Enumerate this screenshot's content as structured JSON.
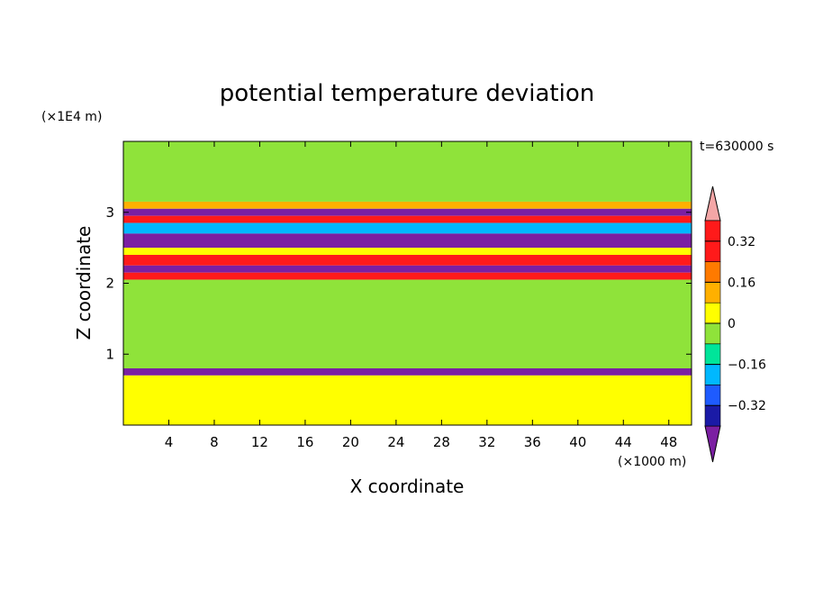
{
  "chart_data": {
    "type": "heatmap",
    "title": "potential temperature deviation",
    "time_label": "t=630000 s",
    "xlabel": "X coordinate",
    "ylabel": "Z coordinate",
    "x_unit": "(×1000 m)",
    "y_unit": "(×1E4 m)",
    "xlim": [
      0,
      50
    ],
    "ylim": [
      0,
      4
    ],
    "x_ticks": [
      4,
      8,
      12,
      16,
      20,
      24,
      28,
      32,
      36,
      40,
      44,
      48
    ],
    "y_ticks": [
      1,
      2,
      3
    ],
    "colorbar": {
      "levels": [
        -0.4,
        -0.32,
        -0.24,
        -0.16,
        -0.08,
        0,
        0.08,
        0.16,
        0.24,
        0.32,
        0.4
      ],
      "tick_values": [
        0.32,
        0.16,
        0,
        -0.16,
        -0.32
      ],
      "tick_labels": [
        "0.32",
        "0.16",
        "0",
        "−0.16",
        "−0.32"
      ],
      "colors": [
        "#7b1fa2",
        "#1a1aa6",
        "#1e5bff",
        "#00b8ff",
        "#00e59a",
        "#8fe33a",
        "#ffff00",
        "#ffb000",
        "#ff7a00",
        "#ff1a1a",
        "#f4a6a6"
      ]
    },
    "bands": [
      {
        "z0": 3.15,
        "z1": 4.0,
        "value": 0.05
      },
      {
        "z0": 3.05,
        "z1": 3.15,
        "value": 0.2
      },
      {
        "z0": 2.95,
        "z1": 3.05,
        "value": -0.36
      },
      {
        "z0": 2.85,
        "z1": 2.95,
        "value": 0.38
      },
      {
        "z0": 2.7,
        "z1": 2.85,
        "value": -0.1
      },
      {
        "z0": 2.5,
        "z1": 2.7,
        "value": -0.36
      },
      {
        "z0": 2.4,
        "z1": 2.5,
        "value": 0.1
      },
      {
        "z0": 2.25,
        "z1": 2.4,
        "value": 0.38
      },
      {
        "z0": 2.15,
        "z1": 2.25,
        "value": -0.36
      },
      {
        "z0": 2.05,
        "z1": 2.15,
        "value": 0.38
      },
      {
        "z0": 0.8,
        "z1": 2.05,
        "value": 0.03
      },
      {
        "z0": 0.7,
        "z1": 0.8,
        "value": -0.38
      },
      {
        "z0": 0.0,
        "z1": 0.7,
        "value": 0.1
      }
    ],
    "grid": false
  }
}
